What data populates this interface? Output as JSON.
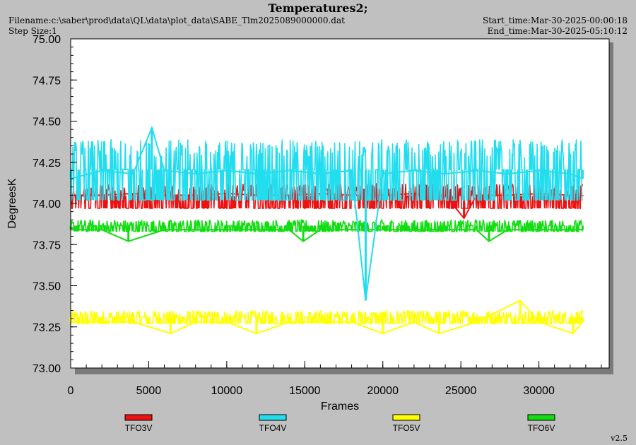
{
  "header": {
    "title": "Temperatures2;",
    "filename": "Filename:c:\\saber\\prod\\data\\QL\\data\\plot_data\\SABE_Tlm2025089000000.dat",
    "step_size": "Step Size:1",
    "start_time": "Start_time:Mar-30-2025-00:00:18",
    "end_time": "End_time:Mar-30-2025-05:10:12"
  },
  "footer": {
    "version": "v2.5"
  },
  "colors": {
    "TFO3V": "#ee1111",
    "TFO4V": "#22ddee",
    "TFO5V": "#ffff00",
    "TFO6V": "#11dd11"
  },
  "chart_data": {
    "type": "line",
    "xlabel": "Frames",
    "ylabel": "DegreesK",
    "xlim": [
      0,
      34500
    ],
    "ylim": [
      73.0,
      75.0
    ],
    "x_ticks": [
      0,
      5000,
      10000,
      15000,
      20000,
      25000,
      30000
    ],
    "x_tick_labels": [
      "0",
      "5000",
      "10000",
      "15000",
      "20000",
      "25000",
      "30000"
    ],
    "y_ticks": [
      73.0,
      73.25,
      73.5,
      73.75,
      74.0,
      74.25,
      74.5,
      74.75,
      75.0
    ],
    "y_tick_labels": [
      "73.00",
      "73.25",
      "73.50",
      "73.75",
      "74.00",
      "74.25",
      "74.50",
      "74.75",
      "75.00"
    ],
    "legend_position": "bottom",
    "series": [
      {
        "name": "TFO3V",
        "color": "#ee1111",
        "x": [
          0,
          2000,
          4000,
          6000,
          8000,
          10000,
          12000,
          14000,
          16000,
          18000,
          20000,
          22000,
          24000,
          25200,
          26000,
          28000,
          30000,
          32000,
          32800
        ],
        "values": [
          74.05,
          74.05,
          74.06,
          74.05,
          74.05,
          74.06,
          74.05,
          74.05,
          74.06,
          74.05,
          74.05,
          74.06,
          74.05,
          73.91,
          74.05,
          74.05,
          74.06,
          74.05,
          74.05
        ],
        "range_low": 73.97,
        "range_high": 74.12
      },
      {
        "name": "TFO4V",
        "color": "#22ddee",
        "x": [
          0,
          2000,
          4000,
          5200,
          6000,
          8000,
          10000,
          12000,
          14000,
          16000,
          18000,
          18900,
          20000,
          22000,
          24000,
          26000,
          28000,
          30000,
          32000,
          32800
        ],
        "values": [
          74.15,
          74.2,
          74.18,
          74.46,
          74.2,
          74.18,
          74.2,
          74.18,
          74.2,
          74.18,
          74.2,
          73.41,
          74.18,
          74.2,
          74.18,
          74.2,
          74.18,
          74.2,
          74.18,
          74.15
        ],
        "range_low": 74.02,
        "range_high": 74.39
      },
      {
        "name": "TFO5V",
        "color": "#ffff00",
        "x": [
          0,
          2000,
          4000,
          6400,
          8000,
          10000,
          11900,
          14000,
          16000,
          18000,
          20000,
          22000,
          23600,
          26000,
          28800,
          30000,
          32200,
          32800
        ],
        "values": [
          73.28,
          73.28,
          73.28,
          73.21,
          73.28,
          73.28,
          73.21,
          73.28,
          73.28,
          73.28,
          73.21,
          73.28,
          73.21,
          73.28,
          73.41,
          73.28,
          73.21,
          73.28
        ],
        "range_low": 73.27,
        "range_high": 73.35
      },
      {
        "name": "TFO6V",
        "color": "#11dd11",
        "x": [
          0,
          2000,
          3700,
          6000,
          8000,
          10000,
          12000,
          14000,
          14900,
          16000,
          18000,
          20000,
          22000,
          24000,
          26000,
          26800,
          28000,
          30000,
          32000,
          32800
        ],
        "values": [
          73.84,
          73.84,
          73.77,
          73.84,
          73.84,
          73.84,
          73.84,
          73.84,
          73.77,
          73.84,
          73.84,
          73.84,
          73.84,
          73.84,
          73.84,
          73.77,
          73.84,
          73.84,
          73.84,
          73.84
        ],
        "range_low": 73.83,
        "range_high": 73.9
      }
    ]
  }
}
